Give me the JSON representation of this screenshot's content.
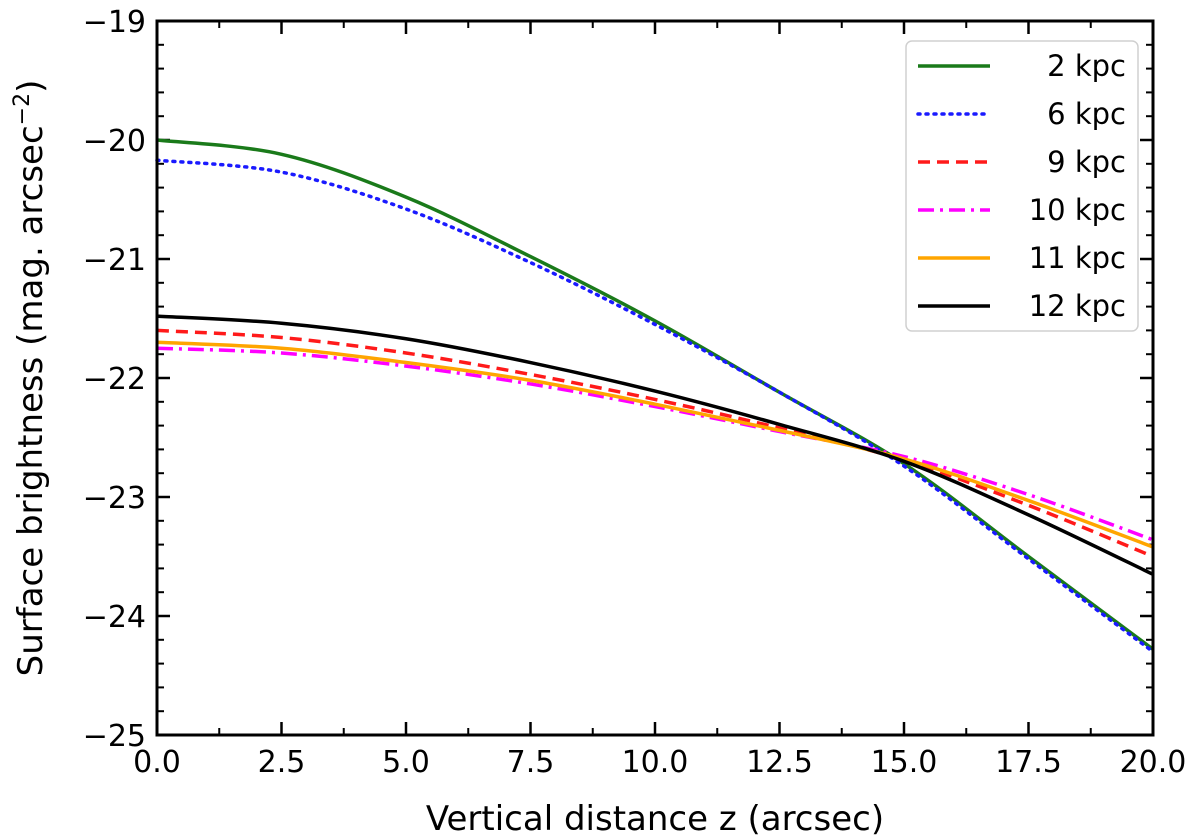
{
  "chart_data": {
    "type": "line",
    "title": "",
    "xlabel": "Vertical distance z (arcsec)",
    "ylabel": "Surface brightness (mag. arcsec",
    "ylabel_sup": "−2",
    "ylabel_close": ")",
    "xlim": [
      0,
      20
    ],
    "ylim": [
      -25,
      -19
    ],
    "x_ticks": [
      0,
      2.5,
      5,
      7.5,
      10,
      12.5,
      15,
      17.5,
      20
    ],
    "x_tick_labels": [
      "0.0",
      "2.5",
      "5.0",
      "7.5",
      "10.0",
      "12.5",
      "15.0",
      "17.5",
      "20.0"
    ],
    "y_ticks": [
      -25,
      -24,
      -23,
      -22,
      -21,
      -20,
      -19
    ],
    "y_tick_labels": [
      "−25",
      "−24",
      "−23",
      "−22",
      "−21",
      "−20",
      "−19"
    ],
    "grid": false,
    "legend_position": "top-right",
    "x": [
      0,
      2.5,
      5,
      7.5,
      10,
      12.5,
      15,
      17.5,
      20
    ],
    "series": [
      {
        "name": "2 kpc",
        "color": "#1a7a1a",
        "dash": "solid",
        "values": [
          -20.0,
          -20.12,
          -20.48,
          -20.98,
          -21.52,
          -22.12,
          -22.72,
          -23.5,
          -24.28
        ]
      },
      {
        "name": "6 kpc",
        "color": "#1a1aff",
        "dash": "dotted",
        "values": [
          -20.17,
          -20.27,
          -20.58,
          -21.03,
          -21.55,
          -22.12,
          -22.74,
          -23.52,
          -24.3
        ]
      },
      {
        "name": "9 kpc",
        "color": "#ff1a1a",
        "dash": "dashed",
        "values": [
          -21.6,
          -21.66,
          -21.79,
          -21.97,
          -22.18,
          -22.42,
          -22.69,
          -23.07,
          -23.5
        ]
      },
      {
        "name": "10 kpc",
        "color": "#ff00ff",
        "dash": "dashdot",
        "values": [
          -21.75,
          -21.79,
          -21.9,
          -22.05,
          -22.24,
          -22.45,
          -22.66,
          -22.98,
          -23.36
        ]
      },
      {
        "name": "11 kpc",
        "color": "#ffa500",
        "dash": "solid",
        "values": [
          -21.7,
          -21.75,
          -21.87,
          -22.02,
          -22.22,
          -22.44,
          -22.68,
          -23.03,
          -23.42
        ]
      },
      {
        "name": "12 kpc",
        "color": "#000000",
        "dash": "solid",
        "values": [
          -21.48,
          -21.54,
          -21.67,
          -21.87,
          -22.11,
          -22.39,
          -22.7,
          -23.15,
          -23.65
        ]
      }
    ]
  }
}
